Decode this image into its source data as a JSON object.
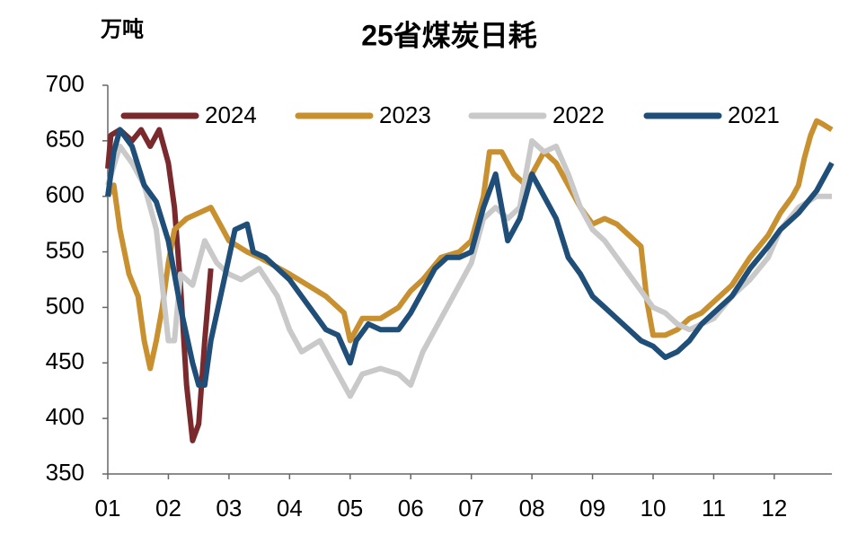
{
  "chart_data": {
    "type": "line",
    "title": "25省煤炭日耗",
    "y_label": "万吨",
    "xlim": [
      1,
      12.95
    ],
    "xticks": [
      {
        "value": 1,
        "label": "01"
      },
      {
        "value": 2,
        "label": "02"
      },
      {
        "value": 3,
        "label": "03"
      },
      {
        "value": 4,
        "label": "04"
      },
      {
        "value": 5,
        "label": "05"
      },
      {
        "value": 6,
        "label": "06"
      },
      {
        "value": 7,
        "label": "07"
      },
      {
        "value": 8,
        "label": "08"
      },
      {
        "value": 9,
        "label": "09"
      },
      {
        "value": 10,
        "label": "10"
      },
      {
        "value": 11,
        "label": "11"
      },
      {
        "value": 12,
        "label": "12"
      }
    ],
    "ylim": [
      350,
      700
    ],
    "yticks": [
      350,
      400,
      450,
      500,
      550,
      600,
      650,
      700
    ],
    "legend": "top",
    "series": [
      {
        "name": "2024",
        "color": "#7a2a2c",
        "x": [
          1.0,
          1.05,
          1.2,
          1.4,
          1.55,
          1.7,
          1.85,
          2.0,
          2.1,
          2.2,
          2.3,
          2.4,
          2.5,
          2.6,
          2.7
        ],
        "values": [
          625,
          655,
          660,
          650,
          660,
          645,
          660,
          630,
          590,
          520,
          430,
          380,
          395,
          470,
          535
        ]
      },
      {
        "name": "2023",
        "color": "#c8902f",
        "x": [
          1.0,
          1.1,
          1.2,
          1.35,
          1.5,
          1.6,
          1.7,
          1.8,
          1.9,
          2.0,
          2.1,
          2.3,
          2.5,
          2.7,
          2.9,
          3.0,
          3.3,
          3.5,
          4.0,
          4.3,
          4.6,
          4.9,
          5.0,
          5.2,
          5.5,
          5.8,
          6.0,
          6.2,
          6.5,
          6.8,
          7.0,
          7.2,
          7.3,
          7.5,
          7.7,
          7.9,
          8.0,
          8.2,
          8.4,
          8.6,
          8.8,
          9.0,
          9.2,
          9.4,
          9.6,
          9.8,
          9.9,
          10.0,
          10.2,
          10.4,
          10.6,
          10.8,
          11.0,
          11.3,
          11.6,
          11.9,
          12.1,
          12.3,
          12.4,
          12.5,
          12.6,
          12.7,
          12.8,
          12.95
        ],
        "values": [
          600,
          610,
          570,
          530,
          510,
          470,
          445,
          470,
          500,
          540,
          570,
          580,
          585,
          590,
          570,
          560,
          550,
          545,
          530,
          520,
          510,
          495,
          470,
          490,
          490,
          500,
          515,
          525,
          545,
          550,
          560,
          600,
          640,
          640,
          620,
          610,
          620,
          640,
          630,
          610,
          590,
          575,
          580,
          575,
          565,
          555,
          505,
          475,
          475,
          480,
          490,
          495,
          505,
          520,
          545,
          565,
          585,
          600,
          610,
          635,
          655,
          668,
          665,
          660
        ]
      },
      {
        "name": "2022",
        "color": "#c9c9c9",
        "x": [
          1.0,
          1.2,
          1.4,
          1.6,
          1.8,
          1.9,
          2.0,
          2.1,
          2.2,
          2.4,
          2.6,
          2.8,
          3.0,
          3.2,
          3.5,
          3.8,
          4.0,
          4.2,
          4.5,
          4.8,
          5.0,
          5.2,
          5.5,
          5.8,
          6.0,
          6.2,
          6.4,
          6.6,
          6.8,
          7.0,
          7.2,
          7.4,
          7.6,
          7.8,
          8.0,
          8.2,
          8.4,
          8.6,
          8.8,
          9.0,
          9.2,
          9.4,
          9.6,
          9.8,
          10.0,
          10.2,
          10.4,
          10.6,
          10.8,
          11.0,
          11.3,
          11.6,
          11.9,
          12.1,
          12.4,
          12.7,
          12.95
        ],
        "values": [
          610,
          645,
          630,
          610,
          570,
          520,
          470,
          470,
          530,
          520,
          560,
          540,
          530,
          525,
          535,
          510,
          480,
          460,
          470,
          440,
          420,
          440,
          445,
          440,
          430,
          460,
          480,
          500,
          520,
          540,
          580,
          590,
          580,
          590,
          650,
          640,
          645,
          620,
          590,
          570,
          560,
          545,
          530,
          515,
          500,
          495,
          485,
          480,
          485,
          490,
          510,
          525,
          545,
          570,
          590,
          600,
          600
        ]
      },
      {
        "name": "2021",
        "color": "#1f4e79",
        "x": [
          1.0,
          1.1,
          1.2,
          1.4,
          1.6,
          1.8,
          2.0,
          2.2,
          2.4,
          2.5,
          2.6,
          2.7,
          2.9,
          3.1,
          3.3,
          3.4,
          3.6,
          3.8,
          4.0,
          4.2,
          4.4,
          4.6,
          4.8,
          5.0,
          5.1,
          5.3,
          5.5,
          5.8,
          6.0,
          6.2,
          6.4,
          6.6,
          6.8,
          7.0,
          7.2,
          7.4,
          7.6,
          7.8,
          8.0,
          8.2,
          8.4,
          8.6,
          8.8,
          9.0,
          9.2,
          9.4,
          9.6,
          9.8,
          10.0,
          10.2,
          10.4,
          10.6,
          10.8,
          11.0,
          11.3,
          11.6,
          11.9,
          12.1,
          12.4,
          12.7,
          12.95
        ],
        "values": [
          600,
          640,
          660,
          645,
          610,
          595,
          560,
          500,
          450,
          430,
          430,
          470,
          520,
          570,
          575,
          550,
          545,
          535,
          525,
          510,
          495,
          480,
          475,
          450,
          470,
          485,
          480,
          480,
          495,
          515,
          535,
          545,
          545,
          550,
          590,
          620,
          560,
          580,
          620,
          600,
          580,
          545,
          530,
          510,
          500,
          490,
          480,
          470,
          465,
          455,
          460,
          470,
          485,
          495,
          510,
          535,
          555,
          570,
          585,
          605,
          630
        ]
      }
    ]
  }
}
